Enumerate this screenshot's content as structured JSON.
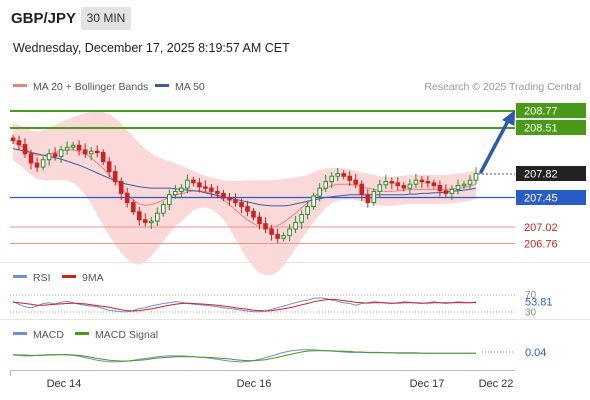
{
  "header": {
    "symbol": "GBP/JPY",
    "timeframe": "30 MIN",
    "datetime": "Wednesday, December 17, 2025 8:19:57 AM CET"
  },
  "colors": {
    "bull": "#2e8b2e",
    "bear": "#cc2222",
    "ma20": "#f08080",
    "ma50": "#3b5ba5",
    "band_fill": "#fbd9d9",
    "target_green": "#4a9a1a",
    "pivot_blue": "#2a5cc8",
    "support_red": "#f09090",
    "rsi_line": "#6f8fd6",
    "rsi_ma": "#cc2222",
    "macd_line": "#6f8fd6",
    "macd_signal": "#4a9a1a",
    "arrow": "#2f5aa8"
  },
  "legend": {
    "ma20_label": "MA 20 + Bollinger Bands",
    "ma50_label": "MA 50",
    "copyright": "Research © 2025 Trading Central",
    "rsi_label": "RSI",
    "rsi_ma_label": "9MA",
    "macd_label": "MACD",
    "macd_signal_label": "MACD Signal"
  },
  "levels": {
    "resistance_2": "208.77",
    "resistance_1": "208.51",
    "last": "207.82",
    "pivot": "207.45",
    "support_1": "207.02",
    "support_2": "206.76"
  },
  "rsi": {
    "upper": "70",
    "value": "53.81",
    "lower": "30"
  },
  "macd": {
    "value": "0.04"
  },
  "xaxis": {
    "ticks": [
      "Dec 14",
      "Dec 16",
      "Dec 17",
      "Dec 22"
    ]
  },
  "chart_data": {
    "type": "candlestick",
    "price_range": [
      206.65,
      208.85
    ],
    "ma20_series": "MA 20 + Bollinger Bands",
    "ma50_series": "MA 50",
    "close": [
      208.32,
      208.26,
      208.12,
      207.98,
      207.92,
      208.03,
      208.12,
      208.08,
      208.18,
      208.22,
      208.25,
      208.18,
      208.12,
      208.16,
      208.14,
      208.0,
      207.85,
      207.7,
      207.52,
      207.38,
      207.24,
      207.12,
      207.08,
      207.1,
      207.22,
      207.35,
      207.5,
      207.55,
      207.6,
      207.72,
      207.68,
      207.62,
      207.6,
      207.55,
      207.52,
      207.45,
      207.42,
      207.38,
      207.32,
      207.25,
      207.16,
      207.06,
      206.98,
      206.9,
      206.84,
      206.88,
      206.98,
      207.08,
      207.2,
      207.32,
      207.48,
      207.6,
      207.7,
      207.78,
      207.82,
      207.78,
      207.72,
      207.66,
      207.5,
      207.38,
      207.55,
      207.65,
      207.7,
      207.68,
      207.64,
      207.6,
      207.66,
      207.72,
      207.7,
      207.68,
      207.64,
      207.56,
      207.52,
      207.58,
      207.64,
      207.66,
      207.72,
      207.82
    ],
    "ma20": [
      208.3,
      208.26,
      208.2,
      208.14,
      208.1,
      208.1,
      208.12,
      208.14,
      208.16,
      208.18,
      208.18,
      208.16,
      208.12,
      208.06,
      207.98,
      207.9,
      207.8,
      207.7,
      207.6,
      207.5,
      207.42,
      207.36,
      207.34,
      207.35,
      207.38,
      207.42,
      207.46,
      207.5,
      207.52,
      207.54,
      207.56,
      207.56,
      207.55,
      207.52,
      207.48,
      207.42,
      207.35,
      207.27,
      207.19,
      207.12,
      207.06,
      207.02,
      207.0,
      207.0,
      207.03,
      207.08,
      207.15,
      207.22,
      207.3,
      207.38,
      207.46,
      207.54,
      207.6,
      207.64,
      207.66,
      207.66,
      207.66,
      207.64,
      207.62,
      207.6,
      207.58,
      207.56,
      207.55,
      207.55,
      207.56,
      207.57,
      207.58,
      207.58,
      207.58,
      207.58,
      207.58,
      207.58,
      207.58,
      207.59,
      207.6,
      207.61,
      207.63,
      207.66
    ],
    "ma50": [
      208.2,
      208.18,
      208.16,
      208.14,
      208.12,
      208.1,
      208.08,
      208.06,
      208.04,
      208.01,
      207.98,
      207.95,
      207.91,
      207.87,
      207.83,
      207.79,
      207.75,
      207.71,
      207.68,
      207.66,
      207.64,
      207.62,
      207.61,
      207.6,
      207.6,
      207.6,
      207.6,
      207.59,
      207.58,
      207.57,
      207.56,
      207.55,
      207.53,
      207.51,
      207.49,
      207.47,
      207.45,
      207.43,
      207.41,
      207.39,
      207.37,
      207.35,
      207.34,
      207.33,
      207.33,
      207.33,
      207.34,
      207.36,
      207.38,
      207.4,
      207.42,
      207.44,
      207.46,
      207.47,
      207.48,
      207.49,
      207.5,
      207.5,
      207.5,
      207.5,
      207.5,
      207.5,
      207.5,
      207.5,
      207.5,
      207.5,
      207.51,
      207.51,
      207.52,
      207.52,
      207.53,
      207.53,
      207.54,
      207.55,
      207.56,
      207.57,
      207.58,
      207.6
    ],
    "band_width": [
      0.28,
      0.3,
      0.32,
      0.34,
      0.36,
      0.38,
      0.4,
      0.42,
      0.44,
      0.46,
      0.5,
      0.55,
      0.62,
      0.7,
      0.78,
      0.86,
      0.92,
      0.96,
      0.98,
      0.98,
      0.96,
      0.92,
      0.86,
      0.78,
      0.7,
      0.62,
      0.55,
      0.48,
      0.42,
      0.36,
      0.3,
      0.26,
      0.24,
      0.24,
      0.26,
      0.3,
      0.36,
      0.44,
      0.52,
      0.6,
      0.66,
      0.7,
      0.72,
      0.72,
      0.7,
      0.66,
      0.6,
      0.54,
      0.48,
      0.42,
      0.38,
      0.34,
      0.3,
      0.27,
      0.25,
      0.24,
      0.23,
      0.22,
      0.22,
      0.22,
      0.22,
      0.22,
      0.22,
      0.22,
      0.22,
      0.22,
      0.22,
      0.22,
      0.22,
      0.22,
      0.22,
      0.22,
      0.22,
      0.22,
      0.22,
      0.22,
      0.22,
      0.22
    ],
    "rsi_range": [
      20,
      80
    ],
    "rsi": [
      55,
      48,
      42,
      40,
      44,
      50,
      52,
      49,
      53,
      55,
      52,
      48,
      46,
      44,
      42,
      38,
      34,
      32,
      30,
      30,
      33,
      38,
      40,
      44,
      47,
      50,
      52,
      54,
      53,
      50,
      48,
      47,
      46,
      44,
      42,
      40,
      38,
      36,
      34,
      32,
      30,
      30,
      32,
      36,
      40,
      44,
      48,
      52,
      56,
      58,
      62,
      64,
      62,
      58,
      55,
      52,
      50,
      46,
      50,
      52,
      54,
      53,
      51,
      50,
      52,
      54,
      53,
      51,
      50,
      52,
      54,
      52,
      50,
      52,
      54,
      53,
      52,
      53.81
    ],
    "rsi_ma": [
      53,
      52,
      50,
      48,
      46,
      46,
      47,
      48,
      49,
      50,
      51,
      50,
      49,
      47,
      45,
      43,
      41,
      38,
      35,
      33,
      32,
      33,
      35,
      37,
      40,
      43,
      46,
      48,
      50,
      51,
      50,
      49,
      48,
      47,
      46,
      44,
      42,
      40,
      38,
      36,
      34,
      33,
      32,
      33,
      35,
      37,
      40,
      43,
      47,
      50,
      54,
      57,
      59,
      60,
      59,
      57,
      55,
      53,
      52,
      51,
      52,
      52,
      52,
      51,
      51,
      52,
      52,
      52,
      51,
      51,
      52,
      52,
      52,
      52,
      52,
      52,
      52,
      52.5
    ],
    "macd_range": [
      -0.3,
      0.3
    ],
    "macd": [
      0.0,
      -0.01,
      -0.02,
      -0.02,
      -0.01,
      0.0,
      0.01,
      0.01,
      0.01,
      0.0,
      -0.01,
      -0.03,
      -0.06,
      -0.09,
      -0.12,
      -0.14,
      -0.16,
      -0.16,
      -0.15,
      -0.14,
      -0.12,
      -0.1,
      -0.08,
      -0.06,
      -0.04,
      -0.03,
      -0.02,
      -0.02,
      -0.02,
      -0.03,
      -0.04,
      -0.05,
      -0.06,
      -0.08,
      -0.1,
      -0.12,
      -0.14,
      -0.15,
      -0.16,
      -0.15,
      -0.13,
      -0.1,
      -0.06,
      -0.02,
      0.02,
      0.06,
      0.09,
      0.11,
      0.12,
      0.12,
      0.12,
      0.11,
      0.1,
      0.09,
      0.08,
      0.07,
      0.06,
      0.06,
      0.06,
      0.05,
      0.05,
      0.05,
      0.05,
      0.05,
      0.04,
      0.04,
      0.04,
      0.04,
      0.04,
      0.04,
      0.04,
      0.04,
      0.04,
      0.04,
      0.04,
      0.04,
      0.04,
      0.04
    ],
    "macd_signal": [
      0.01,
      0.0,
      0.0,
      -0.01,
      -0.01,
      -0.01,
      0.0,
      0.0,
      0.01,
      0.01,
      0.0,
      -0.01,
      -0.03,
      -0.05,
      -0.08,
      -0.1,
      -0.12,
      -0.13,
      -0.14,
      -0.14,
      -0.13,
      -0.12,
      -0.11,
      -0.09,
      -0.07,
      -0.06,
      -0.05,
      -0.04,
      -0.04,
      -0.04,
      -0.04,
      -0.05,
      -0.05,
      -0.06,
      -0.07,
      -0.08,
      -0.09,
      -0.11,
      -0.12,
      -0.13,
      -0.13,
      -0.12,
      -0.11,
      -0.08,
      -0.05,
      -0.02,
      0.01,
      0.04,
      0.07,
      0.09,
      0.1,
      0.1,
      0.1,
      0.1,
      0.09,
      0.09,
      0.08,
      0.07,
      0.07,
      0.06,
      0.06,
      0.06,
      0.05,
      0.05,
      0.05,
      0.05,
      0.05,
      0.05,
      0.04,
      0.04,
      0.04,
      0.04,
      0.04,
      0.04,
      0.04,
      0.04,
      0.04,
      0.04
    ]
  }
}
